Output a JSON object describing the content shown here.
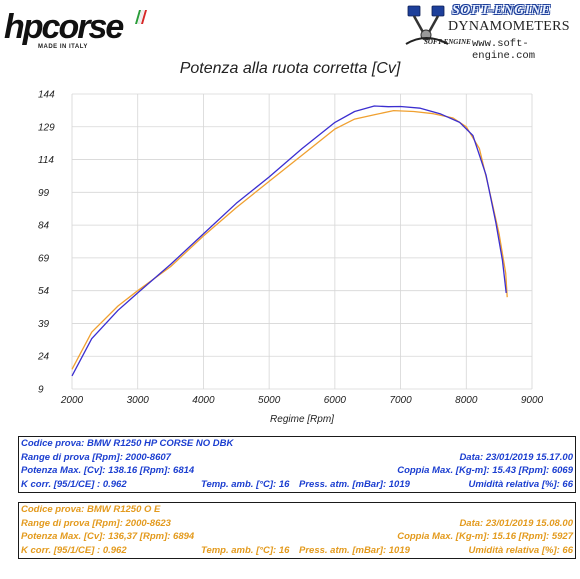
{
  "header": {
    "left_logo_text": "hpcorse",
    "left_logo_tagline": "MADE IN ITALY",
    "right_logo_brand": "SOFT-ENGINE",
    "right_logo_sub": "DYNAMOMETERS",
    "right_logo_small": "SOFT-ENGINE",
    "right_logo_url": "www.soft-engine.com"
  },
  "chart_data": {
    "type": "line",
    "title": "Potenza alla ruota corretta [Cv]",
    "xlabel": "Regime [Rpm]",
    "ylabel": "",
    "xlim": [
      2000,
      9000
    ],
    "ylim": [
      9,
      144
    ],
    "x_ticks": [
      2000,
      3000,
      4000,
      5000,
      6000,
      7000,
      8000,
      9000
    ],
    "y_ticks": [
      9,
      24,
      39,
      54,
      69,
      84,
      99,
      114,
      129,
      144
    ],
    "grid": true,
    "series": [
      {
        "color": "#3b2ed0",
        "x": [
          2000,
          2300,
          2700,
          3000,
          3500,
          4000,
          4500,
          5000,
          5500,
          6000,
          6300,
          6600,
          6814,
          7000,
          7300,
          7600,
          7900,
          8100,
          8300,
          8450,
          8550,
          8607
        ],
        "y": [
          15,
          32,
          45,
          53,
          66,
          80,
          94,
          106,
          119,
          131,
          136,
          138.5,
          138.2,
          138.3,
          137.5,
          135,
          131,
          125,
          107,
          85,
          68,
          53
        ]
      },
      {
        "color": "#f0a030",
        "x": [
          2000,
          2300,
          2700,
          3000,
          3500,
          4000,
          4500,
          5000,
          5500,
          6000,
          6300,
          6600,
          6894,
          7200,
          7500,
          7800,
          8000,
          8200,
          8350,
          8500,
          8600,
          8623
        ],
        "y": [
          18,
          35,
          47,
          54,
          65,
          79,
          92,
          104,
          116,
          128,
          132.5,
          134.5,
          136.4,
          136,
          135,
          133,
          129,
          119,
          100,
          80,
          62,
          51
        ]
      }
    ]
  },
  "runs": [
    {
      "code": "Codice prova: BMW R1250 HP CORSE NO DBK",
      "range": "Range di prova [Rpm]: 2000-8607",
      "date": "Data: 23/01/2019  15.17.00",
      "power": "Potenza Max. [Cv]: 138.16  [Rpm]: 6814",
      "torque": "Coppia Max. [Kg-m]: 15.43  [Rpm]: 6069",
      "kcorr": "K corr. [95/1/CE] : 0.962",
      "temp": "Temp. amb. [°C]: 16",
      "press": "Press. atm. [mBar]: 1019",
      "humidity": "Umidità relativa [%]: 66"
    },
    {
      "code": "Codice prova: BMW R1250 O E",
      "range": "Range di prova [Rpm]: 2000-8623",
      "date": "Data: 23/01/2019  15.08.00",
      "power": "Potenza Max. [Cv]: 136,37  [Rpm]: 6894",
      "torque": "Coppia Max. [Kg-m]: 15.16  [Rpm]: 5927",
      "kcorr": "K corr. [95/1/CE] : 0.962",
      "temp": "Temp. amb. [°C]: 16",
      "press": "Press. atm. [mBar]: 1019",
      "humidity": "Umidità relativa [%]: 66"
    }
  ]
}
